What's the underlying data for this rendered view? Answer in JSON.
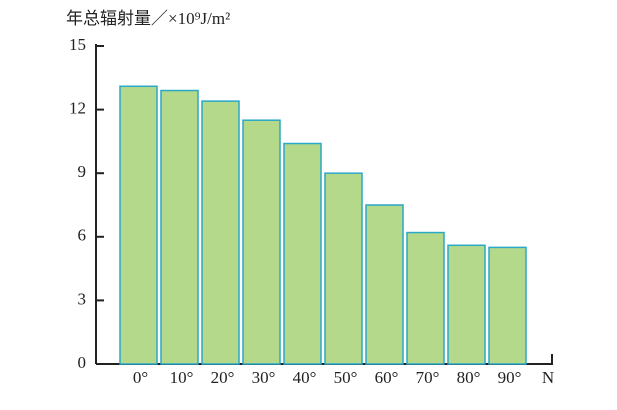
{
  "chart_data": {
    "type": "bar",
    "title": "年总辐射量／×10⁹J/m²",
    "categories": [
      "0°",
      "10°",
      "20°",
      "30°",
      "40°",
      "50°",
      "60°",
      "70°",
      "80°",
      "90°"
    ],
    "values": [
      13.1,
      12.9,
      12.4,
      11.5,
      10.4,
      9.0,
      7.5,
      6.2,
      5.6,
      5.5
    ],
    "color": "#b5d98a",
    "edge_color": "#2aa8c8",
    "x_label": "N",
    "ylim": [
      0,
      15
    ],
    "yticks": [
      0,
      3,
      6,
      9,
      12,
      15
    ]
  }
}
